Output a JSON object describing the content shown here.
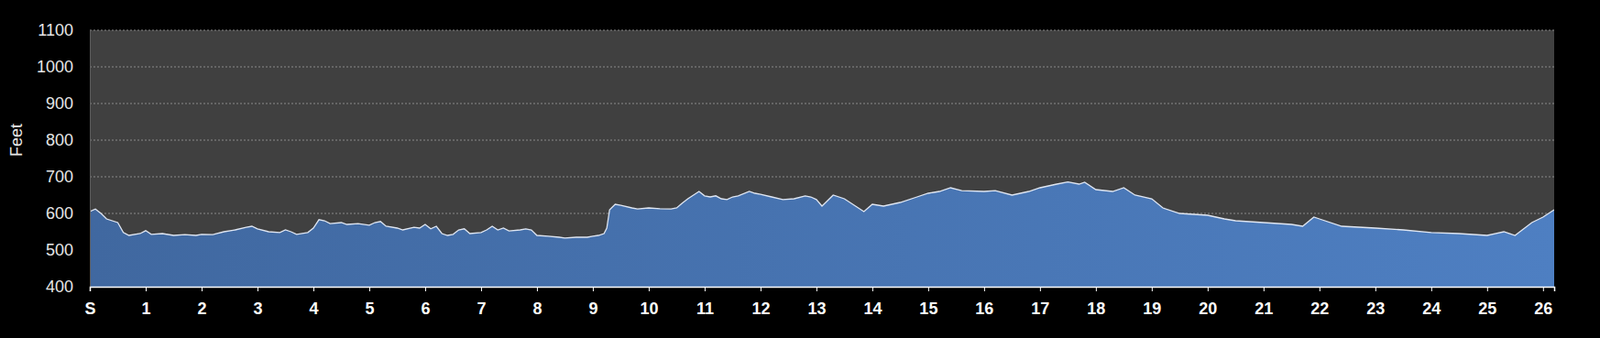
{
  "chart_data": {
    "type": "area",
    "y_label": "Feet",
    "color": "#4a78b8",
    "grid": true,
    "xlim": [
      0,
      26.2
    ],
    "xticks": [
      {
        "value": 0,
        "label": "S"
      },
      1,
      2,
      3,
      4,
      5,
      6,
      7,
      8,
      9,
      10,
      11,
      12,
      13,
      14,
      15,
      16,
      17,
      18,
      19,
      20,
      21,
      22,
      23,
      24,
      25,
      26
    ],
    "ylim": [
      400,
      1100
    ],
    "yticks": [
      400,
      500,
      600,
      700,
      800,
      900,
      1000,
      1100
    ],
    "x": [
      0,
      0.1,
      0.2,
      0.3,
      0.5,
      0.6,
      0.7,
      0.9,
      1.0,
      1.1,
      1.3,
      1.5,
      1.7,
      1.9,
      2.0,
      2.2,
      2.4,
      2.6,
      2.8,
      2.9,
      3.0,
      3.2,
      3.4,
      3.5,
      3.6,
      3.7,
      3.9,
      4.0,
      4.1,
      4.2,
      4.3,
      4.5,
      4.6,
      4.8,
      5.0,
      5.1,
      5.2,
      5.3,
      5.5,
      5.6,
      5.8,
      5.9,
      6.0,
      6.1,
      6.2,
      6.3,
      6.4,
      6.5,
      6.6,
      6.7,
      6.8,
      7.0,
      7.1,
      7.2,
      7.3,
      7.4,
      7.5,
      7.7,
      7.8,
      7.9,
      8.0,
      8.2,
      8.4,
      8.5,
      8.7,
      8.9,
      9.0,
      9.1,
      9.2,
      9.25,
      9.3,
      9.4,
      9.5,
      9.7,
      9.8,
      10.0,
      10.2,
      10.4,
      10.5,
      10.6,
      10.7,
      10.9,
      11.0,
      11.1,
      11.2,
      11.3,
      11.4,
      11.5,
      11.6,
      11.8,
      11.9,
      12.0,
      12.2,
      12.4,
      12.6,
      12.8,
      12.9,
      13.0,
      13.1,
      13.3,
      13.5,
      13.7,
      13.85,
      14.0,
      14.2,
      14.5,
      14.8,
      15.0,
      15.2,
      15.4,
      15.6,
      16.0,
      16.2,
      16.5,
      16.8,
      17.0,
      17.3,
      17.5,
      17.7,
      17.8,
      18.0,
      18.3,
      18.5,
      18.7,
      19.0,
      19.2,
      19.5,
      20.0,
      20.3,
      20.5,
      21.0,
      21.5,
      21.7,
      21.9,
      22.0,
      22.4,
      23.0,
      23.5,
      24.0,
      24.5,
      25.0,
      25.3,
      25.5,
      25.8,
      26.0,
      26.2
    ],
    "values": [
      605,
      612,
      600,
      585,
      575,
      548,
      540,
      545,
      553,
      543,
      545,
      540,
      542,
      540,
      543,
      542,
      550,
      555,
      562,
      565,
      558,
      550,
      548,
      555,
      550,
      543,
      548,
      560,
      583,
      580,
      572,
      575,
      570,
      572,
      568,
      575,
      578,
      565,
      560,
      555,
      562,
      560,
      570,
      558,
      565,
      545,
      540,
      543,
      555,
      558,
      545,
      548,
      555,
      565,
      555,
      560,
      552,
      555,
      558,
      555,
      540,
      538,
      535,
      533,
      535,
      535,
      538,
      540,
      545,
      560,
      610,
      625,
      622,
      615,
      612,
      615,
      613,
      612,
      615,
      628,
      640,
      660,
      648,
      645,
      648,
      640,
      638,
      645,
      648,
      660,
      655,
      652,
      645,
      638,
      640,
      648,
      645,
      638,
      620,
      650,
      640,
      620,
      605,
      625,
      620,
      630,
      645,
      655,
      660,
      670,
      662,
      660,
      662,
      650,
      660,
      670,
      680,
      686,
      680,
      685,
      665,
      660,
      670,
      650,
      640,
      615,
      600,
      595,
      585,
      580,
      575,
      570,
      565,
      590,
      585,
      565,
      560,
      555,
      548,
      545,
      540,
      550,
      540,
      575,
      590,
      610
    ]
  }
}
